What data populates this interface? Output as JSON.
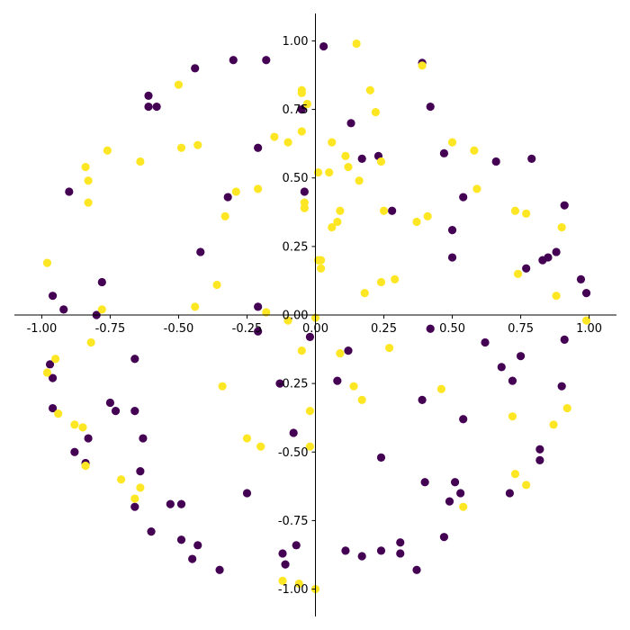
{
  "chart_data": {
    "type": "scatter",
    "title": "",
    "xlabel": "",
    "ylabel": "",
    "xlim": [
      -1.1,
      1.1
    ],
    "ylim": [
      -1.1,
      1.1
    ],
    "x_ticks": [
      "-1.00",
      "-0.75",
      "-0.50",
      "-0.25",
      "0.00",
      "0.25",
      "0.50",
      "0.75",
      "1.00"
    ],
    "y_ticks": [
      "-1.00",
      "-0.75",
      "-0.50",
      "-0.25",
      "0.00",
      "0.25",
      "0.50",
      "0.75",
      "1.00"
    ],
    "spines": "centered",
    "grid": false,
    "legend": "none",
    "colors": {
      "class_0": "#440154",
      "class_1": "#fde725",
      "axis": "#000000"
    },
    "series": [
      {
        "values": [
          [
            0.03,
            0.98
          ],
          [
            -0.3,
            0.93
          ],
          [
            -0.18,
            0.93
          ],
          [
            -0.44,
            0.9
          ],
          [
            0.39,
            0.92
          ],
          [
            -0.61,
            0.8
          ],
          [
            -0.61,
            0.76
          ],
          [
            -0.58,
            0.76
          ],
          [
            0.42,
            0.76
          ],
          [
            -0.05,
            0.75
          ],
          [
            0.13,
            0.7
          ],
          [
            -0.21,
            0.61
          ],
          [
            0.23,
            0.58
          ],
          [
            0.17,
            0.57
          ],
          [
            0.47,
            0.59
          ],
          [
            0.66,
            0.56
          ],
          [
            0.79,
            0.57
          ],
          [
            -0.9,
            0.45
          ],
          [
            -0.04,
            0.45
          ],
          [
            -0.32,
            0.43
          ],
          [
            0.54,
            0.43
          ],
          [
            0.28,
            0.38
          ],
          [
            0.91,
            0.4
          ],
          [
            0.5,
            0.31
          ],
          [
            -0.42,
            0.23
          ],
          [
            0.5,
            0.21
          ],
          [
            0.77,
            0.17
          ],
          [
            0.83,
            0.2
          ],
          [
            0.85,
            0.21
          ],
          [
            0.88,
            0.23
          ],
          [
            0.97,
            0.13
          ],
          [
            0.99,
            0.08
          ],
          [
            -0.78,
            0.12
          ],
          [
            -0.96,
            0.07
          ],
          [
            -0.92,
            0.02
          ],
          [
            -0.21,
            0.03
          ],
          [
            -0.8,
            0.0
          ],
          [
            -0.02,
            -0.08
          ],
          [
            0.42,
            -0.05
          ],
          [
            0.62,
            -0.1
          ],
          [
            0.91,
            -0.09
          ],
          [
            -0.21,
            -0.06
          ],
          [
            0.12,
            -0.13
          ],
          [
            -0.97,
            -0.18
          ],
          [
            -0.96,
            -0.23
          ],
          [
            -0.66,
            -0.16
          ],
          [
            0.68,
            -0.19
          ],
          [
            0.75,
            -0.15
          ],
          [
            0.72,
            -0.24
          ],
          [
            -0.13,
            -0.25
          ],
          [
            0.08,
            -0.24
          ],
          [
            0.9,
            -0.26
          ],
          [
            -0.75,
            -0.32
          ],
          [
            -0.73,
            -0.35
          ],
          [
            -0.96,
            -0.34
          ],
          [
            -0.66,
            -0.35
          ],
          [
            0.39,
            -0.31
          ],
          [
            0.54,
            -0.38
          ],
          [
            -0.08,
            -0.43
          ],
          [
            -0.83,
            -0.45
          ],
          [
            -0.63,
            -0.45
          ],
          [
            -0.88,
            -0.5
          ],
          [
            -0.84,
            -0.54
          ],
          [
            0.82,
            -0.49
          ],
          [
            0.82,
            -0.53
          ],
          [
            0.24,
            -0.52
          ],
          [
            -0.64,
            -0.57
          ],
          [
            0.4,
            -0.61
          ],
          [
            0.51,
            -0.61
          ],
          [
            0.53,
            -0.65
          ],
          [
            -0.25,
            -0.65
          ],
          [
            0.71,
            -0.65
          ],
          [
            -0.53,
            -0.69
          ],
          [
            -0.49,
            -0.69
          ],
          [
            -0.66,
            -0.7
          ],
          [
            0.49,
            -0.68
          ],
          [
            -0.6,
            -0.79
          ],
          [
            -0.49,
            -0.82
          ],
          [
            -0.43,
            -0.84
          ],
          [
            0.47,
            -0.81
          ],
          [
            -0.45,
            -0.89
          ],
          [
            -0.12,
            -0.87
          ],
          [
            -0.07,
            -0.84
          ],
          [
            0.11,
            -0.86
          ],
          [
            0.17,
            -0.88
          ],
          [
            0.24,
            -0.86
          ],
          [
            0.31,
            -0.83
          ],
          [
            0.31,
            -0.87
          ],
          [
            -0.11,
            -0.91
          ],
          [
            -0.35,
            -0.93
          ],
          [
            0.37,
            -0.93
          ]
        ]
      },
      {
        "values": [
          [
            0.15,
            0.99
          ],
          [
            -0.5,
            0.84
          ],
          [
            -0.05,
            0.82
          ],
          [
            -0.05,
            0.81
          ],
          [
            0.39,
            0.91
          ],
          [
            0.2,
            0.82
          ],
          [
            -0.03,
            0.77
          ],
          [
            0.22,
            0.74
          ],
          [
            -0.15,
            0.65
          ],
          [
            -0.1,
            0.63
          ],
          [
            -0.05,
            0.67
          ],
          [
            -0.76,
            0.6
          ],
          [
            -0.64,
            0.56
          ],
          [
            -0.49,
            0.61
          ],
          [
            -0.43,
            0.62
          ],
          [
            0.06,
            0.63
          ],
          [
            0.5,
            0.63
          ],
          [
            0.58,
            0.6
          ],
          [
            0.11,
            0.58
          ],
          [
            0.12,
            0.54
          ],
          [
            0.24,
            0.56
          ],
          [
            0.01,
            0.52
          ],
          [
            0.05,
            0.52
          ],
          [
            0.16,
            0.49
          ],
          [
            0.59,
            0.46
          ],
          [
            -0.84,
            0.54
          ],
          [
            -0.83,
            0.49
          ],
          [
            -0.83,
            0.41
          ],
          [
            -0.29,
            0.45
          ],
          [
            -0.21,
            0.46
          ],
          [
            -0.04,
            0.41
          ],
          [
            -0.04,
            0.39
          ],
          [
            0.09,
            0.38
          ],
          [
            0.25,
            0.38
          ],
          [
            -0.33,
            0.36
          ],
          [
            0.08,
            0.34
          ],
          [
            0.06,
            0.32
          ],
          [
            0.37,
            0.34
          ],
          [
            0.41,
            0.36
          ],
          [
            0.73,
            0.38
          ],
          [
            0.77,
            0.37
          ],
          [
            0.9,
            0.32
          ],
          [
            -0.98,
            0.19
          ],
          [
            0.01,
            0.2
          ],
          [
            0.02,
            0.2
          ],
          [
            0.02,
            0.17
          ],
          [
            0.74,
            0.15
          ],
          [
            -0.36,
            0.11
          ],
          [
            0.24,
            0.12
          ],
          [
            0.29,
            0.13
          ],
          [
            0.18,
            0.08
          ],
          [
            0.88,
            0.07
          ],
          [
            -0.44,
            0.03
          ],
          [
            -0.78,
            0.02
          ],
          [
            -0.18,
            0.01
          ],
          [
            -0.1,
            -0.02
          ],
          [
            0.0,
            -0.01
          ],
          [
            0.99,
            -0.02
          ],
          [
            -0.82,
            -0.1
          ],
          [
            -0.95,
            -0.16
          ],
          [
            -0.98,
            -0.21
          ],
          [
            -0.05,
            -0.13
          ],
          [
            0.09,
            -0.14
          ],
          [
            0.27,
            -0.12
          ],
          [
            -0.34,
            -0.26
          ],
          [
            0.14,
            -0.26
          ],
          [
            0.46,
            -0.27
          ],
          [
            0.17,
            -0.31
          ],
          [
            -0.94,
            -0.36
          ],
          [
            -0.02,
            -0.35
          ],
          [
            0.72,
            -0.37
          ],
          [
            0.92,
            -0.34
          ],
          [
            -0.88,
            -0.4
          ],
          [
            -0.85,
            -0.41
          ],
          [
            -0.25,
            -0.45
          ],
          [
            -0.2,
            -0.48
          ],
          [
            -0.02,
            -0.48
          ],
          [
            0.87,
            -0.4
          ],
          [
            -0.84,
            -0.55
          ],
          [
            -0.71,
            -0.6
          ],
          [
            0.73,
            -0.58
          ],
          [
            -0.64,
            -0.63
          ],
          [
            -0.66,
            -0.67
          ],
          [
            0.77,
            -0.62
          ],
          [
            0.54,
            -0.7
          ],
          [
            -0.12,
            -0.97
          ],
          [
            -0.06,
            -0.98
          ],
          [
            0.0,
            -1.0
          ]
        ]
      }
    ]
  }
}
